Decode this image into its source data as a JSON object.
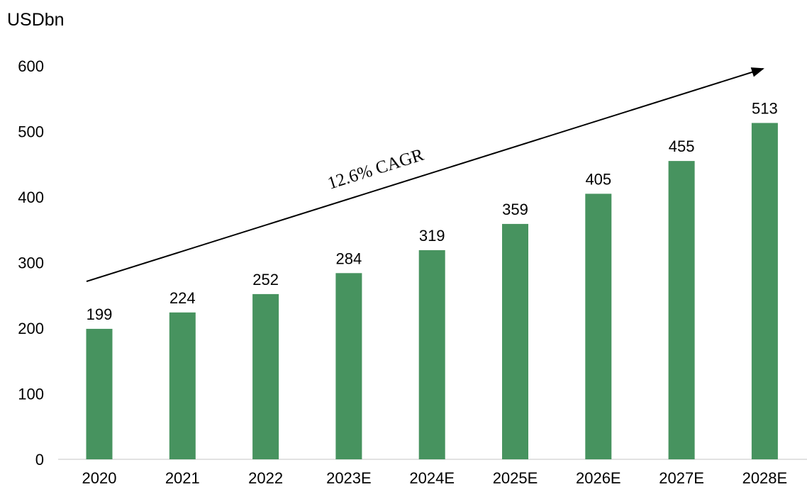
{
  "chart_data": {
    "type": "bar",
    "unit_label": "USDbn",
    "categories": [
      "2020",
      "2021",
      "2022",
      "2023E",
      "2024E",
      "2025E",
      "2026E",
      "2027E",
      "2028E"
    ],
    "values": [
      199,
      224,
      252,
      284,
      319,
      359,
      405,
      455,
      513
    ],
    "data_labels": [
      "199",
      "224",
      "252",
      "284",
      "319",
      "359",
      "405",
      "455",
      "513"
    ],
    "ylim": [
      0,
      600
    ],
    "yticks": [
      "0",
      "100",
      "200",
      "300",
      "400",
      "500",
      "600"
    ],
    "grid": false,
    "legend": "none",
    "bar_color": "#47935f",
    "annotation": {
      "text": "12.6% CAGR",
      "arrow": true
    }
  }
}
